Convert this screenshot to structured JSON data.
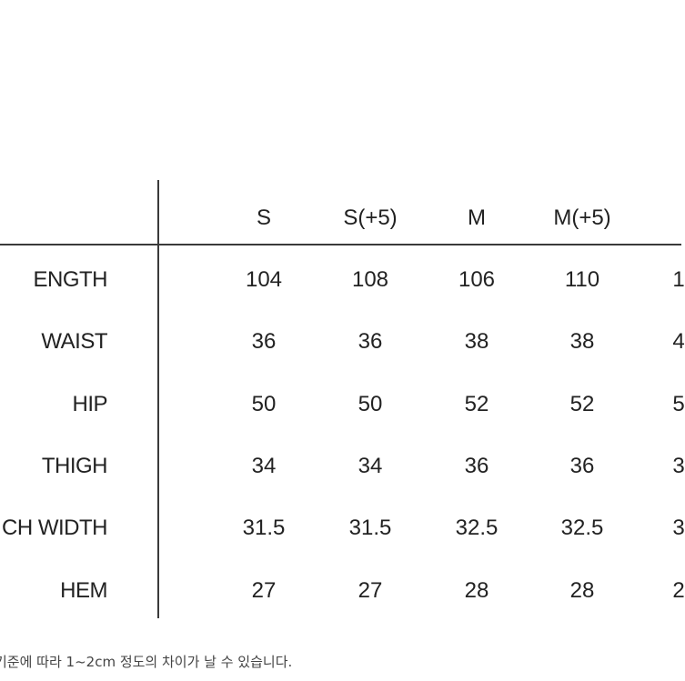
{
  "table": {
    "columns": [
      "S",
      "S(+5)",
      "M",
      "M(+5)",
      ""
    ],
    "rows": [
      {
        "label": "ENGTH",
        "values": [
          "104",
          "108",
          "106",
          "110",
          "1"
        ]
      },
      {
        "label": "WAIST",
        "values": [
          "36",
          "36",
          "38",
          "38",
          "4"
        ]
      },
      {
        "label": "HIP",
        "values": [
          "50",
          "50",
          "52",
          "52",
          "5"
        ]
      },
      {
        "label": "THIGH",
        "values": [
          "34",
          "34",
          "36",
          "36",
          "3"
        ]
      },
      {
        "label": "CH WIDTH",
        "values": [
          "31.5",
          "31.5",
          "32.5",
          "32.5",
          "3"
        ]
      },
      {
        "label": "HEM",
        "values": [
          "27",
          "27",
          "28",
          "28",
          "2"
        ]
      }
    ]
  },
  "note": "기준에 따라 1~2cm 정도의 차이가 날 수 있습니다."
}
